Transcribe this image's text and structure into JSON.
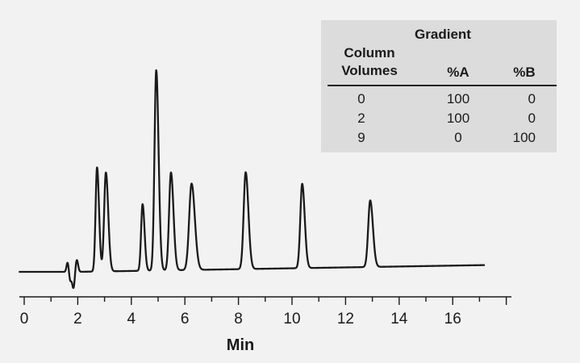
{
  "chart_data": {
    "type": "line",
    "xlabel": "Min",
    "ylabel": "",
    "xlim": [
      -0.2,
      17.5
    ],
    "ylim": [
      -4,
      50
    ],
    "x_ticks": [
      0,
      2,
      4,
      6,
      8,
      10,
      12,
      14,
      16
    ],
    "x_tick_labels": [
      "0",
      "2",
      "4",
      "6",
      "8",
      "10",
      "12",
      "14",
      "16"
    ],
    "grid": false,
    "baseline_x_range": [
      -0.2,
      17.2
    ],
    "baseline_rise": 1.3,
    "disturbance": [
      {
        "x": 1.62,
        "height": 1.8,
        "sigma": 0.04
      },
      {
        "x": 1.72,
        "height": -1.6,
        "sigma": 0.04
      },
      {
        "x": 1.84,
        "height": -3.2,
        "sigma": 0.05
      },
      {
        "x": 1.96,
        "height": 2.4,
        "sigma": 0.05
      }
    ],
    "peaks": [
      {
        "retention_time": 2.72,
        "height": 20.0,
        "width": 0.055
      },
      {
        "retention_time": 3.05,
        "height": 19.0,
        "width": 0.065
      },
      {
        "retention_time": 4.42,
        "height": 12.8,
        "width": 0.055
      },
      {
        "retention_time": 4.93,
        "height": 38.5,
        "width": 0.065
      },
      {
        "retention_time": 5.48,
        "height": 18.8,
        "width": 0.07
      },
      {
        "retention_time": 6.25,
        "height": 16.6,
        "width": 0.09
      },
      {
        "retention_time": 8.27,
        "height": 18.6,
        "width": 0.075
      },
      {
        "retention_time": 10.38,
        "height": 16.2,
        "width": 0.07
      },
      {
        "retention_time": 12.92,
        "height": 12.8,
        "width": 0.075
      }
    ]
  },
  "gradient_table": {
    "title": "Gradient",
    "col1_header_line1": "Column",
    "col1_header_line2": "Volumes",
    "col2_header": "%A",
    "col3_header": "%B",
    "rows": [
      {
        "column_volumes": "0",
        "pct_a": "100",
        "pct_b": "0"
      },
      {
        "column_volumes": "2",
        "pct_a": "100",
        "pct_b": "0"
      },
      {
        "column_volumes": "9",
        "pct_a": "0",
        "pct_b": "100"
      }
    ]
  },
  "colors": {
    "background": "#f2f2f2",
    "trace": "#1a1a1a",
    "table_background": "#dcdcdc"
  }
}
